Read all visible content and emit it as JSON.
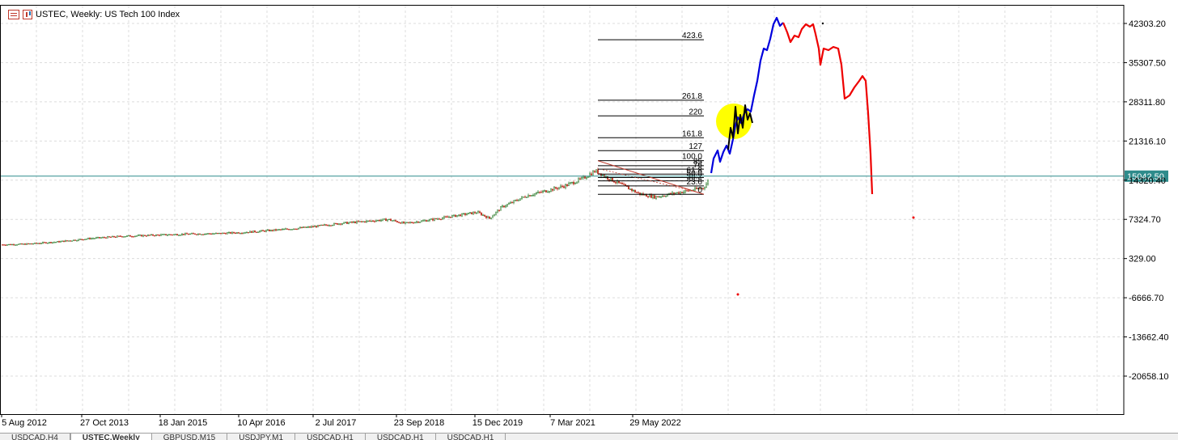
{
  "window": {
    "title": "USTEC, Weekly:  US Tech 100 Index"
  },
  "tabs": [
    {
      "label": "USDCAD,H4",
      "active": false
    },
    {
      "label": "USTEC,Weekly",
      "active": true
    },
    {
      "label": "GBPUSD,M15",
      "active": false
    },
    {
      "label": "USDJPY,M1",
      "active": false
    },
    {
      "label": "USDCAD,H1",
      "active": false
    },
    {
      "label": "USDCAD,H1",
      "active": false
    },
    {
      "label": "USDCAD,H1",
      "active": false
    }
  ],
  "colors": {
    "up": "#2f7d2f",
    "down": "#c0392b",
    "current_price_line": "#2e8b8b",
    "current_price_badge": "#2e8b8b",
    "drawing_blue": "#0000dd",
    "drawing_red": "#ee0000",
    "drawing_black": "#000000",
    "highlight_yellow": "#ffff00",
    "grid": "#dcdcdc"
  },
  "chart_data": {
    "type": "candlestick",
    "y_axis_ticks": [
      "42303.20",
      "35307.50",
      "28311.80",
      "21316.10",
      "14320.40",
      "7324.70",
      "329.00",
      "-6666.70",
      "-13662.40",
      "-20658.10"
    ],
    "y_tick_values": [
      42303.2,
      35307.5,
      28311.8,
      21316.1,
      14320.4,
      7324.7,
      329.0,
      -6666.7,
      -13662.4,
      -20658.1
    ],
    "x_axis_labels": [
      "5 Aug 2012",
      "27 Oct 2013",
      "18 Jan 2015",
      "10 Apr 2016",
      "2 Jul 2017",
      "23 Sep 2018",
      "15 Dec 2019",
      "7 Mar 2021",
      "29 May 2022"
    ],
    "current_price": "15042.50",
    "current_price_value": 15042.5,
    "fibonacci_levels": [
      "423.6",
      "261.8",
      "220",
      "161.8",
      "127",
      "100.0",
      "85",
      "76",
      "61.8",
      "50.0",
      "38.2",
      "23.6",
      "0"
    ],
    "fibonacci_values": [
      39400,
      28600,
      25800,
      21900,
      19600,
      17800,
      16900,
      16300,
      15400,
      14800,
      14200,
      13300,
      11800
    ],
    "price_series_trend": [
      [
        0,
        2800
      ],
      [
        30,
        2900
      ],
      [
        70,
        3300
      ],
      [
        110,
        3900
      ],
      [
        150,
        4300
      ],
      [
        190,
        4500
      ],
      [
        230,
        4700
      ],
      [
        270,
        4800
      ],
      [
        300,
        5000
      ],
      [
        340,
        5400
      ],
      [
        380,
        5900
      ],
      [
        420,
        6600
      ],
      [
        455,
        7000
      ],
      [
        480,
        7300
      ],
      [
        500,
        6600
      ],
      [
        530,
        7200
      ],
      [
        560,
        7900
      ],
      [
        590,
        8600
      ],
      [
        605,
        7500
      ],
      [
        620,
        9500
      ],
      [
        650,
        11500
      ],
      [
        680,
        12600
      ],
      [
        700,
        13400
      ],
      [
        720,
        14600
      ],
      [
        736,
        16000
      ],
      [
        750,
        14800
      ],
      [
        770,
        13400
      ],
      [
        790,
        11900
      ],
      [
        810,
        11300
      ],
      [
        830,
        11900
      ],
      [
        850,
        12400
      ],
      [
        870,
        13000
      ],
      [
        878,
        14800
      ]
    ]
  }
}
